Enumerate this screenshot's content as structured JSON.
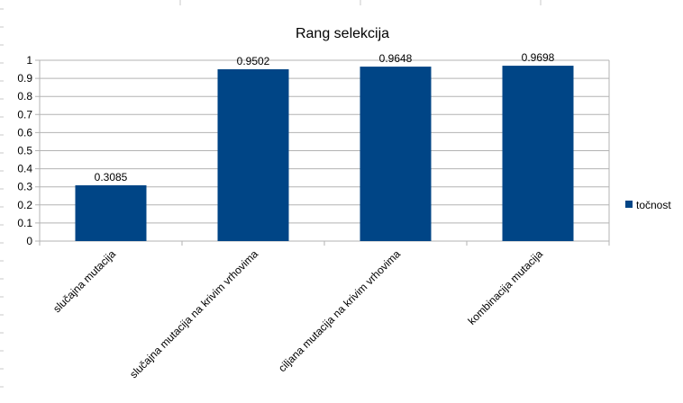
{
  "chart_data": {
    "type": "bar",
    "title": "Rang selekcija",
    "categories": [
      "slučajna mutacija",
      "slučajna mutacija na krivim vrhovima",
      "ciljana mutacija na krivim vrhovima",
      "kombinacija mutacija"
    ],
    "series": [
      {
        "name": "točnost",
        "values": [
          0.3085,
          0.9502,
          0.9648,
          0.9698
        ],
        "labels": [
          "0.3085",
          "0.9502",
          "0.9648",
          "0.9698"
        ],
        "color": "#004586"
      }
    ],
    "yticks": [
      "0",
      "0.1",
      "0.2",
      "0.3",
      "0.4",
      "0.5",
      "0.6",
      "0.7",
      "0.8",
      "0.9",
      "1"
    ],
    "ylim": [
      0,
      1
    ],
    "grid": true,
    "legend_position": "right",
    "xlabel": "",
    "ylabel": ""
  }
}
